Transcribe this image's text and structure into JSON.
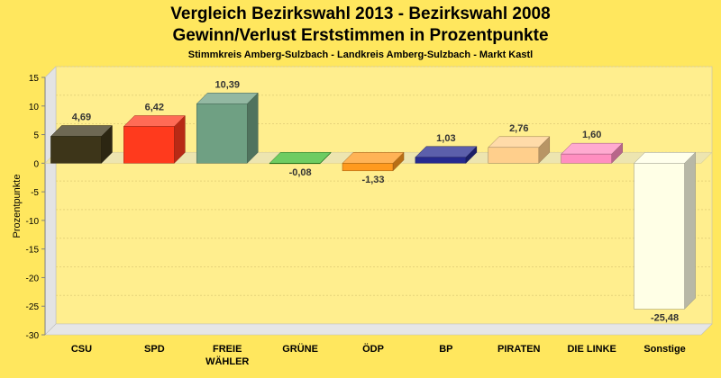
{
  "title_line1": "Vergleich Bezirkswahl 2013 - Bezirkswahl 2008",
  "title_line2": "Gewinn/Verlust Erststimmen in Prozentpunkte",
  "subtitle": "Stimmkreis Amberg-Sulzbach - Landkreis Amberg-Sulzbach - Markt Kastl",
  "chart_data": {
    "type": "bar",
    "title": "Vergleich Bezirkswahl 2013 - Bezirkswahl 2008 / Gewinn/Verlust Erststimmen in Prozentpunkte",
    "ylabel": "Prozentpunkte",
    "xlabel": "",
    "ylim": [
      -30,
      15
    ],
    "yticks": [
      15,
      10,
      5,
      0,
      -5,
      -10,
      -15,
      -20,
      -25,
      -30
    ],
    "grid": true,
    "categories": [
      {
        "lines": [
          "CSU"
        ]
      },
      {
        "lines": [
          "SPD"
        ]
      },
      {
        "lines": [
          "FREIE",
          "WÄHLER"
        ]
      },
      {
        "lines": [
          "GRÜNE"
        ]
      },
      {
        "lines": [
          "ÖDP"
        ]
      },
      {
        "lines": [
          "BP"
        ]
      },
      {
        "lines": [
          "PIRATEN"
        ]
      },
      {
        "lines": [
          "DIE LINKE"
        ]
      },
      {
        "lines": [
          "Sonstige"
        ]
      }
    ],
    "values": [
      4.69,
      6.42,
      10.39,
      -0.08,
      -1.33,
      1.03,
      2.76,
      1.6,
      -25.48
    ],
    "value_labels": [
      "4,69",
      "6,42",
      "10,39",
      "-0,08",
      "-1,33",
      "1,03",
      "2,76",
      "1,60",
      "-25,48"
    ],
    "colors": [
      "#3D3519",
      "#FF3A1D",
      "#6FA083",
      "#3DBB2D",
      "#FF9A1E",
      "#262A8F",
      "#FFCF8C",
      "#FF8EC0",
      "#FFFFE6"
    ]
  }
}
